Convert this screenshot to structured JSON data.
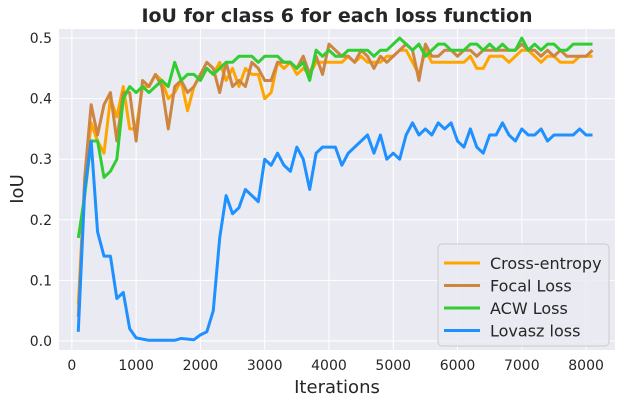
{
  "chart_data": {
    "type": "line",
    "title": "IoU for class 6 for each loss function",
    "xlabel": "Iterations",
    "ylabel": "IoU",
    "xlim": [
      -200,
      8450
    ],
    "ylim": [
      -0.015,
      0.515
    ],
    "xticks": [
      0,
      1000,
      2000,
      3000,
      4000,
      5000,
      6000,
      7000,
      8000
    ],
    "yticks": [
      0.0,
      0.1,
      0.2,
      0.3,
      0.4,
      0.5
    ],
    "ytick_labels": [
      "0.0",
      "0.1",
      "0.2",
      "0.3",
      "0.4",
      "0.5"
    ],
    "grid": true,
    "legend_position": "lower-right",
    "x": [
      100,
      200,
      300,
      400,
      500,
      600,
      700,
      800,
      900,
      1000,
      1100,
      1200,
      1300,
      1400,
      1500,
      1600,
      1700,
      1800,
      1900,
      2000,
      2100,
      2200,
      2300,
      2400,
      2500,
      2600,
      2700,
      2800,
      2900,
      3000,
      3100,
      3200,
      3300,
      3400,
      3500,
      3600,
      3700,
      3800,
      3900,
      4000,
      4100,
      4200,
      4300,
      4400,
      4500,
      4600,
      4700,
      4800,
      4900,
      5000,
      5100,
      5200,
      5300,
      5400,
      5500,
      5600,
      5700,
      5800,
      5900,
      6000,
      6100,
      6200,
      6300,
      6400,
      6500,
      6600,
      6700,
      6800,
      6900,
      7000,
      7100,
      7200,
      7300,
      7400,
      7500,
      7600,
      7700,
      7800,
      7900,
      8000,
      8100
    ],
    "series": [
      {
        "name": "Cross-entropy",
        "color": "#FFA500",
        "values": [
          0.06,
          0.26,
          0.36,
          0.33,
          0.31,
          0.4,
          0.37,
          0.42,
          0.35,
          0.35,
          0.42,
          0.42,
          0.44,
          0.43,
          0.4,
          0.41,
          0.43,
          0.38,
          0.42,
          0.44,
          0.45,
          0.44,
          0.46,
          0.43,
          0.45,
          0.42,
          0.45,
          0.44,
          0.44,
          0.4,
          0.41,
          0.46,
          0.45,
          0.46,
          0.44,
          0.45,
          0.44,
          0.46,
          0.46,
          0.46,
          0.46,
          0.46,
          0.47,
          0.46,
          0.47,
          0.46,
          0.46,
          0.46,
          0.47,
          0.47,
          0.48,
          0.48,
          0.46,
          0.44,
          0.48,
          0.46,
          0.46,
          0.46,
          0.46,
          0.46,
          0.46,
          0.47,
          0.45,
          0.45,
          0.47,
          0.47,
          0.47,
          0.46,
          0.47,
          0.48,
          0.48,
          0.47,
          0.46,
          0.47,
          0.47,
          0.46,
          0.46,
          0.46,
          0.47,
          0.47,
          0.47
        ]
      },
      {
        "name": "Focal Loss",
        "color": "#CD853F",
        "values": [
          0.04,
          0.27,
          0.39,
          0.34,
          0.39,
          0.41,
          0.33,
          0.41,
          0.41,
          0.33,
          0.43,
          0.42,
          0.44,
          0.42,
          0.35,
          0.42,
          0.43,
          0.41,
          0.42,
          0.44,
          0.46,
          0.45,
          0.41,
          0.46,
          0.42,
          0.43,
          0.42,
          0.46,
          0.45,
          0.43,
          0.43,
          0.46,
          0.46,
          0.46,
          0.45,
          0.47,
          0.44,
          0.47,
          0.44,
          0.49,
          0.48,
          0.47,
          0.47,
          0.46,
          0.48,
          0.47,
          0.45,
          0.47,
          0.46,
          0.47,
          0.48,
          0.49,
          0.48,
          0.43,
          0.49,
          0.47,
          0.47,
          0.48,
          0.48,
          0.47,
          0.48,
          0.48,
          0.47,
          0.48,
          0.48,
          0.48,
          0.48,
          0.48,
          0.48,
          0.49,
          0.48,
          0.48,
          0.47,
          0.48,
          0.47,
          0.48,
          0.47,
          0.47,
          0.47,
          0.47,
          0.48
        ]
      },
      {
        "name": "ACW Loss",
        "color": "#32CD32",
        "values": [
          0.17,
          0.24,
          0.33,
          0.33,
          0.27,
          0.28,
          0.3,
          0.4,
          0.42,
          0.41,
          0.42,
          0.41,
          0.42,
          0.43,
          0.42,
          0.46,
          0.43,
          0.44,
          0.44,
          0.43,
          0.45,
          0.44,
          0.45,
          0.46,
          0.46,
          0.47,
          0.47,
          0.47,
          0.46,
          0.47,
          0.47,
          0.47,
          0.46,
          0.46,
          0.45,
          0.46,
          0.43,
          0.48,
          0.47,
          0.48,
          0.47,
          0.47,
          0.48,
          0.48,
          0.48,
          0.48,
          0.47,
          0.48,
          0.48,
          0.49,
          0.5,
          0.49,
          0.48,
          0.49,
          0.47,
          0.48,
          0.49,
          0.49,
          0.48,
          0.48,
          0.48,
          0.49,
          0.49,
          0.48,
          0.49,
          0.48,
          0.49,
          0.48,
          0.48,
          0.5,
          0.48,
          0.49,
          0.48,
          0.49,
          0.49,
          0.48,
          0.48,
          0.49,
          0.49,
          0.49,
          0.49
        ]
      },
      {
        "name": "Lovasz loss",
        "color": "#1E90FF",
        "values": [
          0.015,
          0.25,
          0.33,
          0.18,
          0.14,
          0.14,
          0.07,
          0.08,
          0.02,
          0.005,
          0.003,
          0.001,
          0.001,
          0.001,
          0.001,
          0.001,
          0.004,
          0.003,
          0.002,
          0.01,
          0.015,
          0.05,
          0.17,
          0.24,
          0.21,
          0.22,
          0.25,
          0.24,
          0.23,
          0.3,
          0.29,
          0.31,
          0.29,
          0.28,
          0.32,
          0.3,
          0.25,
          0.31,
          0.32,
          0.32,
          0.32,
          0.29,
          0.31,
          0.32,
          0.33,
          0.34,
          0.31,
          0.34,
          0.3,
          0.31,
          0.3,
          0.34,
          0.36,
          0.34,
          0.35,
          0.34,
          0.36,
          0.35,
          0.36,
          0.33,
          0.32,
          0.35,
          0.32,
          0.31,
          0.34,
          0.34,
          0.36,
          0.34,
          0.33,
          0.35,
          0.34,
          0.34,
          0.35,
          0.33,
          0.34,
          0.34,
          0.34,
          0.34,
          0.35,
          0.34,
          0.34
        ]
      }
    ]
  }
}
